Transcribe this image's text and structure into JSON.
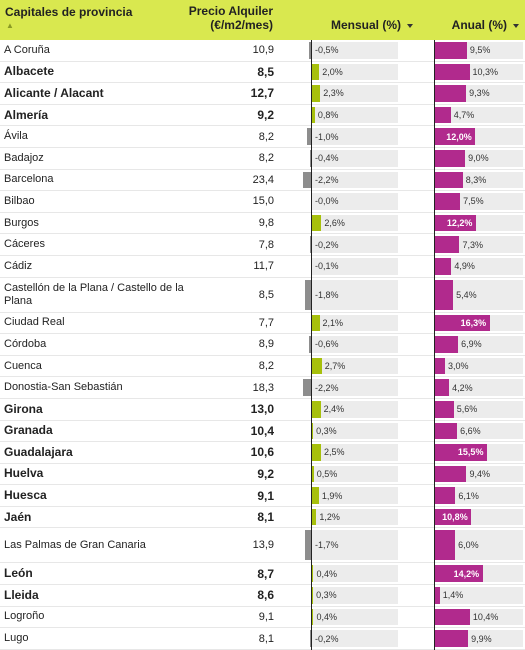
{
  "header": {
    "name_label": "Capitales de provincia",
    "sort_icon": "▲",
    "price_label_line1": "Precio Alquiler",
    "price_label_line2": "(€/m2/mes)",
    "monthly_label": "Mensual (%)",
    "annual_label": "Anual (%)"
  },
  "colors": {
    "header_bg": "#d9e84f",
    "monthly_positive": "#a7c00c",
    "monthly_negative": "#8d8d8d",
    "annual_bar": "#b12a8d",
    "track": "#ececec"
  },
  "chart_data": {
    "type": "table",
    "columns": [
      "Capitales de provincia",
      "Precio Alquiler (€/m2/mes)",
      "Mensual (%)",
      "Anual (%)"
    ],
    "rows": [
      {
        "name": "A Coruña",
        "price": "10,9",
        "monthly": "-0,5%",
        "monthly_value": -0.5,
        "annual": "9,5%",
        "annual_value": 9.5,
        "bold": false
      },
      {
        "name": "Albacete",
        "price": "8,5",
        "monthly": "2,0%",
        "monthly_value": 2.0,
        "annual": "10,3%",
        "annual_value": 10.3,
        "bold": true
      },
      {
        "name": "Alicante / Alacant",
        "price": "12,7",
        "monthly": "2,3%",
        "monthly_value": 2.3,
        "annual": "9,3%",
        "annual_value": 9.3,
        "bold": true
      },
      {
        "name": "Almería",
        "price": "9,2",
        "monthly": "0,8%",
        "monthly_value": 0.8,
        "annual": "4,7%",
        "annual_value": 4.7,
        "bold": true
      },
      {
        "name": "Ávila",
        "price": "8,2",
        "monthly": "-1,0%",
        "monthly_value": -1.0,
        "annual": "12,0%",
        "annual_value": 12.0,
        "bold": false
      },
      {
        "name": "Badajoz",
        "price": "8,2",
        "monthly": "-0,4%",
        "monthly_value": -0.4,
        "annual": "9,0%",
        "annual_value": 9.0,
        "bold": false
      },
      {
        "name": "Barcelona",
        "price": "23,4",
        "monthly": "-2,2%",
        "monthly_value": -2.2,
        "annual": "8,3%",
        "annual_value": 8.3,
        "bold": false
      },
      {
        "name": "Bilbao",
        "price": "15,0",
        "monthly": "-0,0%",
        "monthly_value": 0.0,
        "annual": "7,5%",
        "annual_value": 7.5,
        "bold": false
      },
      {
        "name": "Burgos",
        "price": "9,8",
        "monthly": "2,6%",
        "monthly_value": 2.6,
        "annual": "12,2%",
        "annual_value": 12.2,
        "bold": false
      },
      {
        "name": "Cáceres",
        "price": "7,8",
        "monthly": "-0,2%",
        "monthly_value": -0.2,
        "annual": "7,3%",
        "annual_value": 7.3,
        "bold": false
      },
      {
        "name": "Cádiz",
        "price": "11,7",
        "monthly": "-0,1%",
        "monthly_value": -0.1,
        "annual": "4,9%",
        "annual_value": 4.9,
        "bold": false
      },
      {
        "name": "Castellón de la Plana / Castello de la Plana",
        "price": "8,5",
        "monthly": "-1,8%",
        "monthly_value": -1.8,
        "annual": "5,4%",
        "annual_value": 5.4,
        "bold": false,
        "tall": true
      },
      {
        "name": "Ciudad Real",
        "price": "7,7",
        "monthly": "2,1%",
        "monthly_value": 2.1,
        "annual": "16,3%",
        "annual_value": 16.3,
        "bold": false
      },
      {
        "name": "Córdoba",
        "price": "8,9",
        "monthly": "-0,6%",
        "monthly_value": -0.6,
        "annual": "6,9%",
        "annual_value": 6.9,
        "bold": false
      },
      {
        "name": "Cuenca",
        "price": "8,2",
        "monthly": "2,7%",
        "monthly_value": 2.7,
        "annual": "3,0%",
        "annual_value": 3.0,
        "bold": false
      },
      {
        "name": "Donostia-San Sebastián",
        "price": "18,3",
        "monthly": "-2,2%",
        "monthly_value": -2.2,
        "annual": "4,2%",
        "annual_value": 4.2,
        "bold": false
      },
      {
        "name": "Girona",
        "price": "13,0",
        "monthly": "2,4%",
        "monthly_value": 2.4,
        "annual": "5,6%",
        "annual_value": 5.6,
        "bold": true
      },
      {
        "name": "Granada",
        "price": "10,4",
        "monthly": "0,3%",
        "monthly_value": 0.3,
        "annual": "6,6%",
        "annual_value": 6.6,
        "bold": true
      },
      {
        "name": "Guadalajara",
        "price": "10,6",
        "monthly": "2,5%",
        "monthly_value": 2.5,
        "annual": "15,5%",
        "annual_value": 15.5,
        "bold": true
      },
      {
        "name": "Huelva",
        "price": "9,2",
        "monthly": "0,5%",
        "monthly_value": 0.5,
        "annual": "9,4%",
        "annual_value": 9.4,
        "bold": true
      },
      {
        "name": "Huesca",
        "price": "9,1",
        "monthly": "1,9%",
        "monthly_value": 1.9,
        "annual": "6,1%",
        "annual_value": 6.1,
        "bold": true
      },
      {
        "name": "Jaén",
        "price": "8,1",
        "monthly": "1,2%",
        "monthly_value": 1.2,
        "annual": "10,8%",
        "annual_value": 10.8,
        "bold": true
      },
      {
        "name": "Las Palmas de Gran Canaria",
        "price": "13,9",
        "monthly": "-1,7%",
        "monthly_value": -1.7,
        "annual": "6,0%",
        "annual_value": 6.0,
        "bold": false,
        "tall": true
      },
      {
        "name": "León",
        "price": "8,7",
        "monthly": "0,4%",
        "monthly_value": 0.4,
        "annual": "14,2%",
        "annual_value": 14.2,
        "bold": true
      },
      {
        "name": "Lleida",
        "price": "8,6",
        "monthly": "0,3%",
        "monthly_value": 0.3,
        "annual": "1,4%",
        "annual_value": 1.4,
        "bold": true
      },
      {
        "name": "Logroño",
        "price": "9,1",
        "monthly": "0,4%",
        "monthly_value": 0.4,
        "annual": "10,4%",
        "annual_value": 10.4,
        "bold": false
      },
      {
        "name": "Lugo",
        "price": "8,1",
        "monthly": "-0,2%",
        "monthly_value": -0.2,
        "annual": "9,9%",
        "annual_value": 9.9,
        "bold": false
      }
    ]
  }
}
